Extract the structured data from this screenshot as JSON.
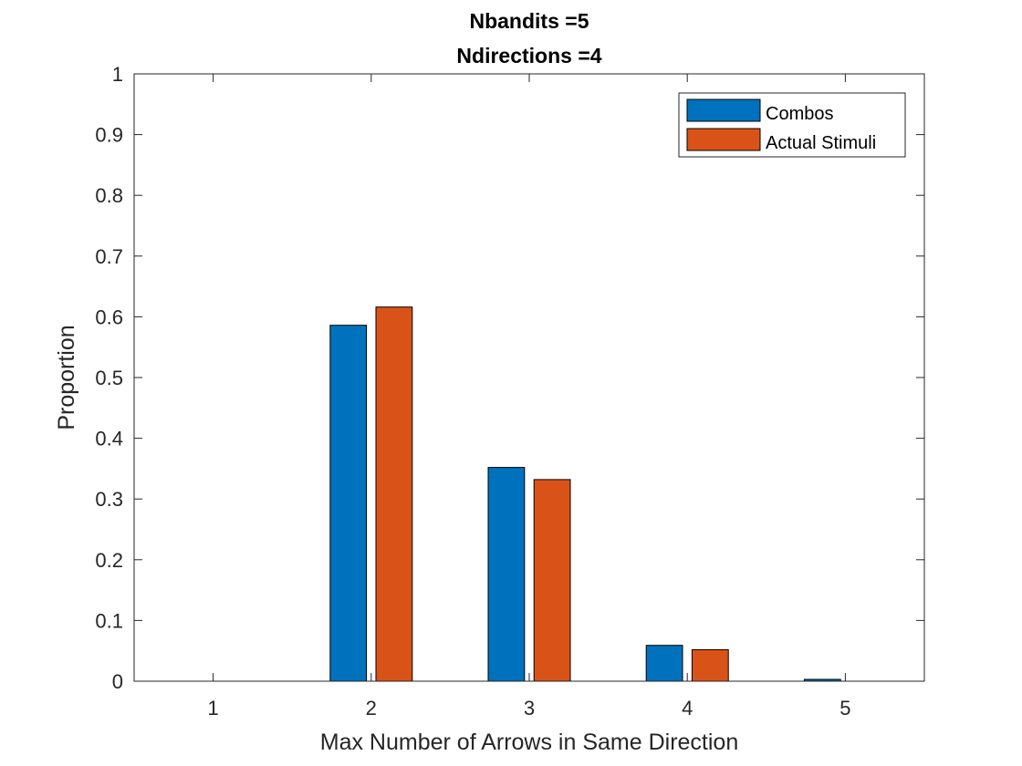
{
  "chart_data": {
    "type": "bar",
    "title": [
      "Nbandits =5",
      "Ndirections =4"
    ],
    "xlabel": "Max Number of Arrows in Same Direction",
    "ylabel": "Proportion",
    "categories": [
      1,
      2,
      3,
      4,
      5
    ],
    "series": [
      {
        "name": "Combos",
        "color": "#0072BD",
        "values": [
          0,
          0.586,
          0.352,
          0.059,
          0.003
        ]
      },
      {
        "name": "Actual Stimuli",
        "color": "#D95319",
        "values": [
          0,
          0.616,
          0.332,
          0.052,
          0
        ]
      }
    ],
    "xlim": [
      0.5,
      5.5
    ],
    "ylim": [
      0,
      1
    ],
    "yticks": [
      0,
      0.1,
      0.2,
      0.3,
      0.4,
      0.5,
      0.6,
      0.7,
      0.8,
      0.9,
      1
    ],
    "ytick_labels": [
      "0",
      "0.1",
      "0.2",
      "0.3",
      "0.4",
      "0.5",
      "0.6",
      "0.7",
      "0.8",
      "0.9",
      "1"
    ],
    "xtick_labels": [
      "1",
      "2",
      "3",
      "4",
      "5"
    ],
    "grid": false,
    "legend_position": "top-right"
  }
}
